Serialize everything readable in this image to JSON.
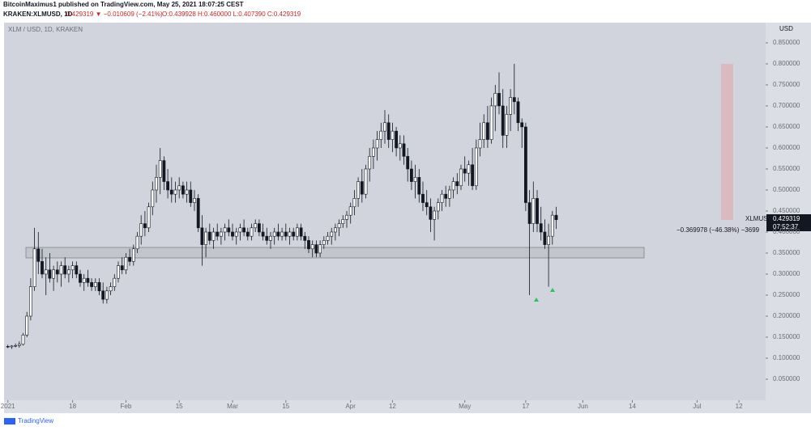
{
  "header": {
    "line1": "BitcoinMaximus1 published on TradingView.com, May 25, 2021 18:07:25 CEST",
    "symbol": "KRAKEN:XLMUSD, 1D",
    "price": "0.429319 ▼ −0.010609 (−2.41%)",
    "ohlc_text": "O:0.439928 H:0.460000 L:0.407390 C:0.429319"
  },
  "price_tag": {
    "symbol": "XLMUSD",
    "price": "0.429319",
    "countdown": "07:52:37"
  },
  "measure_label": "−0.369978 (−46.38%) −3699",
  "footer": "TradingView",
  "chart_data": {
    "type": "candlestick",
    "title": "XLM / USD, 1D, KRAKEN",
    "y_axis_label": "USD",
    "up_color": "#ffffff",
    "down_color": "#131722",
    "xlim": [
      -1,
      199
    ],
    "ylim": [
      0,
      0.898
    ],
    "xticks": [
      {
        "value": 0,
        "label": "2021"
      },
      {
        "value": 17,
        "label": "18"
      },
      {
        "value": 31,
        "label": "Feb"
      },
      {
        "value": 45,
        "label": "15"
      },
      {
        "value": 59,
        "label": "Mar"
      },
      {
        "value": 73,
        "label": "15"
      },
      {
        "value": 90,
        "label": "Apr"
      },
      {
        "value": 101,
        "label": "12"
      },
      {
        "value": 120,
        "label": "May"
      },
      {
        "value": 136,
        "label": "17"
      },
      {
        "value": 151,
        "label": "Jun"
      },
      {
        "value": 164,
        "label": "14"
      },
      {
        "value": 181,
        "label": "Jul"
      },
      {
        "value": 192,
        "label": "12"
      }
    ],
    "yticks": [
      {
        "value": 0.05,
        "label": "0.050000"
      },
      {
        "value": 0.1,
        "label": "0.100000"
      },
      {
        "value": 0.15,
        "label": "0.150000"
      },
      {
        "value": 0.2,
        "label": "0.200000"
      },
      {
        "value": 0.25,
        "label": "0.250000"
      },
      {
        "value": 0.3,
        "label": "0.300000"
      },
      {
        "value": 0.35,
        "label": "0.350000"
      },
      {
        "value": 0.4,
        "label": "0.400000"
      },
      {
        "value": 0.45,
        "label": "0.450000"
      },
      {
        "value": 0.5,
        "label": "0.500000"
      },
      {
        "value": 0.55,
        "label": "0.550000"
      },
      {
        "value": 0.6,
        "label": "0.600000"
      },
      {
        "value": 0.65,
        "label": "0.650000"
      },
      {
        "value": 0.7,
        "label": "0.700000"
      },
      {
        "value": 0.75,
        "label": "0.750000"
      },
      {
        "value": 0.8,
        "label": "0.800000"
      },
      {
        "value": 0.85,
        "label": "0.850000"
      }
    ],
    "x": [
      0,
      1,
      2,
      3,
      4,
      5,
      6,
      7,
      8,
      9,
      10,
      11,
      12,
      13,
      14,
      15,
      16,
      17,
      18,
      19,
      20,
      21,
      22,
      23,
      24,
      25,
      26,
      27,
      28,
      29,
      30,
      31,
      32,
      33,
      34,
      35,
      36,
      37,
      38,
      39,
      40,
      41,
      42,
      43,
      44,
      45,
      46,
      47,
      48,
      49,
      50,
      51,
      52,
      53,
      54,
      55,
      56,
      57,
      58,
      59,
      60,
      61,
      62,
      63,
      64,
      65,
      66,
      67,
      68,
      69,
      70,
      71,
      72,
      73,
      74,
      75,
      76,
      77,
      78,
      79,
      80,
      81,
      82,
      83,
      84,
      85,
      86,
      87,
      88,
      89,
      90,
      91,
      92,
      93,
      94,
      95,
      96,
      97,
      98,
      99,
      100,
      101,
      102,
      103,
      104,
      105,
      106,
      107,
      108,
      109,
      110,
      111,
      112,
      113,
      114,
      115,
      116,
      117,
      118,
      119,
      120,
      121,
      122,
      123,
      124,
      125,
      126,
      127,
      128,
      129,
      130,
      131,
      132,
      133,
      134,
      135,
      136,
      137,
      138,
      139,
      140,
      141,
      142,
      143,
      144
    ],
    "ohlc": [
      [
        0.128,
        0.132,
        0.124,
        0.127
      ],
      [
        0.127,
        0.131,
        0.122,
        0.129
      ],
      [
        0.129,
        0.135,
        0.126,
        0.13
      ],
      [
        0.13,
        0.14,
        0.125,
        0.133
      ],
      [
        0.133,
        0.16,
        0.13,
        0.155
      ],
      [
        0.155,
        0.21,
        0.15,
        0.2
      ],
      [
        0.2,
        0.29,
        0.19,
        0.27
      ],
      [
        0.27,
        0.41,
        0.26,
        0.36
      ],
      [
        0.36,
        0.4,
        0.3,
        0.33
      ],
      [
        0.33,
        0.36,
        0.29,
        0.3
      ],
      [
        0.3,
        0.34,
        0.25,
        0.31
      ],
      [
        0.31,
        0.35,
        0.28,
        0.29
      ],
      [
        0.29,
        0.32,
        0.26,
        0.31
      ],
      [
        0.31,
        0.33,
        0.28,
        0.3
      ],
      [
        0.3,
        0.33,
        0.27,
        0.32
      ],
      [
        0.32,
        0.34,
        0.29,
        0.3
      ],
      [
        0.3,
        0.32,
        0.28,
        0.31
      ],
      [
        0.31,
        0.33,
        0.29,
        0.32
      ],
      [
        0.32,
        0.33,
        0.29,
        0.3
      ],
      [
        0.3,
        0.31,
        0.27,
        0.28
      ],
      [
        0.28,
        0.3,
        0.26,
        0.29
      ],
      [
        0.29,
        0.31,
        0.27,
        0.28
      ],
      [
        0.28,
        0.29,
        0.26,
        0.27
      ],
      [
        0.27,
        0.29,
        0.26,
        0.28
      ],
      [
        0.28,
        0.29,
        0.25,
        0.26
      ],
      [
        0.26,
        0.28,
        0.23,
        0.24
      ],
      [
        0.24,
        0.27,
        0.23,
        0.26
      ],
      [
        0.26,
        0.28,
        0.25,
        0.27
      ],
      [
        0.27,
        0.3,
        0.26,
        0.29
      ],
      [
        0.29,
        0.33,
        0.28,
        0.32
      ],
      [
        0.32,
        0.34,
        0.3,
        0.31
      ],
      [
        0.31,
        0.35,
        0.3,
        0.34
      ],
      [
        0.34,
        0.36,
        0.32,
        0.33
      ],
      [
        0.33,
        0.37,
        0.32,
        0.36
      ],
      [
        0.36,
        0.4,
        0.35,
        0.39
      ],
      [
        0.39,
        0.44,
        0.37,
        0.42
      ],
      [
        0.42,
        0.45,
        0.39,
        0.41
      ],
      [
        0.41,
        0.47,
        0.4,
        0.46
      ],
      [
        0.46,
        0.52,
        0.44,
        0.5
      ],
      [
        0.5,
        0.56,
        0.47,
        0.53
      ],
      [
        0.53,
        0.6,
        0.49,
        0.57
      ],
      [
        0.57,
        0.58,
        0.5,
        0.52
      ],
      [
        0.52,
        0.55,
        0.48,
        0.5
      ],
      [
        0.5,
        0.53,
        0.47,
        0.49
      ],
      [
        0.49,
        0.52,
        0.47,
        0.5
      ],
      [
        0.5,
        0.53,
        0.48,
        0.51
      ],
      [
        0.51,
        0.52,
        0.48,
        0.49
      ],
      [
        0.49,
        0.52,
        0.47,
        0.5
      ],
      [
        0.5,
        0.52,
        0.46,
        0.47
      ],
      [
        0.47,
        0.5,
        0.45,
        0.48
      ],
      [
        0.48,
        0.49,
        0.4,
        0.41
      ],
      [
        0.41,
        0.44,
        0.32,
        0.37
      ],
      [
        0.37,
        0.41,
        0.34,
        0.4
      ],
      [
        0.4,
        0.42,
        0.37,
        0.38
      ],
      [
        0.38,
        0.41,
        0.36,
        0.4
      ],
      [
        0.4,
        0.42,
        0.38,
        0.39
      ],
      [
        0.39,
        0.41,
        0.37,
        0.4
      ],
      [
        0.4,
        0.42,
        0.38,
        0.41
      ],
      [
        0.41,
        0.43,
        0.39,
        0.4
      ],
      [
        0.4,
        0.42,
        0.38,
        0.39
      ],
      [
        0.39,
        0.41,
        0.37,
        0.4
      ],
      [
        0.4,
        0.42,
        0.38,
        0.41
      ],
      [
        0.41,
        0.43,
        0.39,
        0.4
      ],
      [
        0.4,
        0.41,
        0.38,
        0.39
      ],
      [
        0.39,
        0.42,
        0.38,
        0.41
      ],
      [
        0.41,
        0.43,
        0.4,
        0.42
      ],
      [
        0.42,
        0.43,
        0.39,
        0.4
      ],
      [
        0.4,
        0.42,
        0.38,
        0.39
      ],
      [
        0.39,
        0.41,
        0.37,
        0.38
      ],
      [
        0.38,
        0.4,
        0.36,
        0.39
      ],
      [
        0.39,
        0.41,
        0.37,
        0.4
      ],
      [
        0.4,
        0.42,
        0.38,
        0.39
      ],
      [
        0.39,
        0.41,
        0.38,
        0.4
      ],
      [
        0.4,
        0.42,
        0.38,
        0.39
      ],
      [
        0.39,
        0.41,
        0.37,
        0.4
      ],
      [
        0.4,
        0.41,
        0.38,
        0.39
      ],
      [
        0.39,
        0.42,
        0.38,
        0.41
      ],
      [
        0.41,
        0.42,
        0.38,
        0.39
      ],
      [
        0.39,
        0.4,
        0.36,
        0.38
      ],
      [
        0.38,
        0.39,
        0.35,
        0.36
      ],
      [
        0.36,
        0.38,
        0.34,
        0.37
      ],
      [
        0.37,
        0.38,
        0.34,
        0.35
      ],
      [
        0.35,
        0.38,
        0.34,
        0.37
      ],
      [
        0.37,
        0.39,
        0.36,
        0.38
      ],
      [
        0.38,
        0.4,
        0.37,
        0.39
      ],
      [
        0.39,
        0.41,
        0.37,
        0.4
      ],
      [
        0.4,
        0.42,
        0.38,
        0.41
      ],
      [
        0.41,
        0.43,
        0.39,
        0.42
      ],
      [
        0.42,
        0.44,
        0.41,
        0.43
      ],
      [
        0.43,
        0.45,
        0.41,
        0.44
      ],
      [
        0.44,
        0.47,
        0.42,
        0.46
      ],
      [
        0.46,
        0.5,
        0.44,
        0.48
      ],
      [
        0.48,
        0.53,
        0.46,
        0.52
      ],
      [
        0.52,
        0.55,
        0.47,
        0.49
      ],
      [
        0.49,
        0.56,
        0.48,
        0.55
      ],
      [
        0.55,
        0.6,
        0.52,
        0.58
      ],
      [
        0.58,
        0.62,
        0.55,
        0.6
      ],
      [
        0.6,
        0.64,
        0.57,
        0.62
      ],
      [
        0.62,
        0.66,
        0.6,
        0.64
      ],
      [
        0.64,
        0.69,
        0.61,
        0.66
      ],
      [
        0.66,
        0.68,
        0.6,
        0.62
      ],
      [
        0.62,
        0.66,
        0.59,
        0.64
      ],
      [
        0.64,
        0.65,
        0.58,
        0.6
      ],
      [
        0.6,
        0.63,
        0.57,
        0.61
      ],
      [
        0.61,
        0.63,
        0.56,
        0.58
      ],
      [
        0.58,
        0.6,
        0.52,
        0.55
      ],
      [
        0.55,
        0.57,
        0.5,
        0.52
      ],
      [
        0.52,
        0.56,
        0.48,
        0.53
      ],
      [
        0.53,
        0.55,
        0.47,
        0.49
      ],
      [
        0.49,
        0.52,
        0.45,
        0.47
      ],
      [
        0.47,
        0.5,
        0.44,
        0.46
      ],
      [
        0.46,
        0.48,
        0.4,
        0.43
      ],
      [
        0.43,
        0.46,
        0.38,
        0.45
      ],
      [
        0.45,
        0.48,
        0.43,
        0.47
      ],
      [
        0.47,
        0.5,
        0.45,
        0.49
      ],
      [
        0.49,
        0.51,
        0.46,
        0.48
      ],
      [
        0.48,
        0.51,
        0.46,
        0.5
      ],
      [
        0.5,
        0.53,
        0.48,
        0.52
      ],
      [
        0.52,
        0.54,
        0.49,
        0.51
      ],
      [
        0.51,
        0.56,
        0.5,
        0.55
      ],
      [
        0.55,
        0.58,
        0.52,
        0.54
      ],
      [
        0.54,
        0.57,
        0.51,
        0.56
      ],
      [
        0.56,
        0.6,
        0.5,
        0.51
      ],
      [
        0.51,
        0.62,
        0.5,
        0.6
      ],
      [
        0.6,
        0.66,
        0.58,
        0.62
      ],
      [
        0.62,
        0.68,
        0.6,
        0.66
      ],
      [
        0.66,
        0.7,
        0.6,
        0.62
      ],
      [
        0.62,
        0.72,
        0.61,
        0.7
      ],
      [
        0.7,
        0.75,
        0.64,
        0.73
      ],
      [
        0.73,
        0.78,
        0.68,
        0.7
      ],
      [
        0.7,
        0.74,
        0.6,
        0.63
      ],
      [
        0.63,
        0.7,
        0.6,
        0.68
      ],
      [
        0.68,
        0.74,
        0.64,
        0.72
      ],
      [
        0.72,
        0.8,
        0.68,
        0.71
      ],
      [
        0.71,
        0.72,
        0.64,
        0.66
      ],
      [
        0.66,
        0.67,
        0.6,
        0.65
      ],
      [
        0.65,
        0.66,
        0.45,
        0.47
      ],
      [
        0.47,
        0.5,
        0.25,
        0.42
      ],
      [
        0.42,
        0.52,
        0.4,
        0.48
      ],
      [
        0.48,
        0.5,
        0.4,
        0.42
      ],
      [
        0.42,
        0.46,
        0.38,
        0.4
      ],
      [
        0.4,
        0.43,
        0.36,
        0.37
      ],
      [
        0.37,
        0.42,
        0.27,
        0.39
      ],
      [
        0.39,
        0.45,
        0.37,
        0.44
      ],
      [
        0.439928,
        0.46,
        0.40739,
        0.429319
      ]
    ]
  }
}
